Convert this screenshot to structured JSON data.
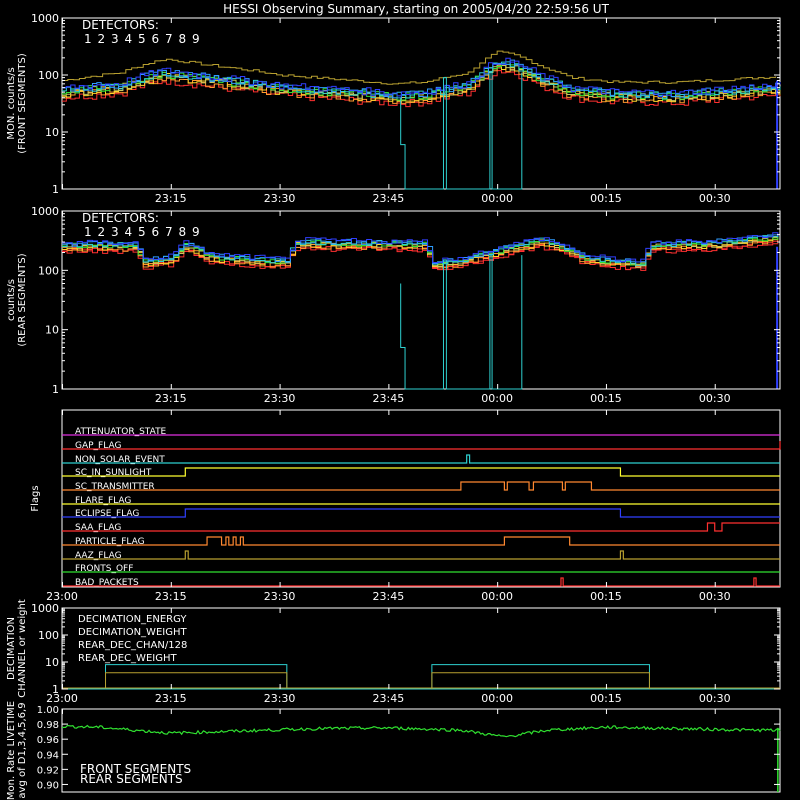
{
  "title": "HESSI Observing Summary, starting on 2005/04/20 22:59:56 UT",
  "detector_colors": [
    "#ff3030",
    "#ff3030",
    "#ff9a2e",
    "#ffd42a",
    "#c8c860",
    "#30e030",
    "#2ed0d0",
    "#2e9cff",
    "#3040ff"
  ],
  "colors": {
    "axis": "#ffffff",
    "yellow": "#ffff30",
    "brown": "#b8a030",
    "cyan": "#2ed0d0",
    "green": "#30e030",
    "red": "#ff3030",
    "orange": "#ff8830",
    "magenta": "#e030e0",
    "blue": "#3040ff"
  },
  "time_ticks": [
    "23:00",
    "23:15",
    "23:30",
    "23:45",
    "00:00",
    "00:15",
    "00:30"
  ],
  "chart_data": [
    {
      "type": "line",
      "title": "",
      "legend_title": "DETECTORS:",
      "legend": [
        "1",
        "2",
        "3",
        "4",
        "5",
        "6",
        "7",
        "8",
        "9"
      ],
      "ylabel": "MON. counts/s",
      "ylabel2": "(FRONT SEGMENTS)",
      "yscale": "log",
      "ylim": [
        1,
        1000
      ],
      "ytick_labels": [
        "1",
        "10",
        "100",
        "1000"
      ],
      "xtick_labels": [
        "23:15",
        "23:30",
        "23:45",
        "00:00",
        "00:15",
        "00:30"
      ],
      "series_shape": {
        "t_min": [
          0,
          8,
          14,
          20,
          30,
          40,
          46,
          50,
          56,
          58,
          60,
          62,
          66,
          70,
          76,
          80,
          85,
          93,
          99
        ],
        "front_mid": [
          50,
          60,
          100,
          80,
          55,
          45,
          40,
          42,
          60,
          100,
          150,
          140,
          80,
          50,
          42,
          42,
          40,
          50,
          55
        ],
        "front_top": [
          80,
          110,
          190,
          150,
          100,
          80,
          70,
          75,
          110,
          180,
          250,
          230,
          140,
          90,
          75,
          75,
          75,
          85,
          95
        ]
      }
    },
    {
      "type": "line",
      "legend_title": "DETECTORS:",
      "legend": [
        "1",
        "2",
        "3",
        "4",
        "5",
        "6",
        "7",
        "8",
        "9"
      ],
      "ylabel": "counts/s",
      "ylabel2": "(REAR SEGMENTS)",
      "yscale": "log",
      "ylim": [
        1,
        1000
      ],
      "ytick_labels": [
        "1",
        "10",
        "100",
        "1000"
      ],
      "xtick_labels": [
        "23:15",
        "23:30",
        "23:45",
        "00:00",
        "00:15",
        "00:30"
      ],
      "series_shape": {
        "t_min": [
          0,
          10,
          11,
          15,
          17,
          20,
          31,
          32,
          38,
          50,
          51,
          55,
          60,
          66,
          72,
          80,
          81,
          90,
          99
        ],
        "rear_mid": [
          250,
          250,
          130,
          150,
          260,
          160,
          130,
          280,
          270,
          260,
          120,
          140,
          200,
          300,
          150,
          120,
          250,
          270,
          350
        ]
      }
    },
    {
      "type": "table",
      "ylabel": "Flags",
      "xtick_labels": [
        "23:00",
        "23:15",
        "23:30",
        "23:45",
        "00:00",
        "00:15",
        "00:30"
      ],
      "flags": [
        {
          "name": "ATTENUATOR_STATE",
          "color": "#e030e0"
        },
        {
          "name": "GAP_FLAG",
          "color": "#ff3030"
        },
        {
          "name": "NON_SOLAR_EVENT",
          "color": "#2ed0d0"
        },
        {
          "name": "SC_IN_SUNLIGHT",
          "color": "#ffff30"
        },
        {
          "name": "SC_TRANSMITTER",
          "color": "#ff8830"
        },
        {
          "name": "FLARE_FLAG",
          "color": "#ffff30"
        },
        {
          "name": "ECLIPSE_FLAG",
          "color": "#3040ff"
        },
        {
          "name": "SAA_FLAG",
          "color": "#ff3030"
        },
        {
          "name": "PARTICLE_FLAG",
          "color": "#ff8830"
        },
        {
          "name": "AAZ_FLAG",
          "color": "#b8a030"
        },
        {
          "name": "FRONTS_OFF",
          "color": "#30e030"
        },
        {
          "name": "BAD_PACKETS",
          "color": "#ff3030"
        }
      ]
    },
    {
      "type": "line",
      "ylabel": "DECIMATION",
      "ylabel2": "CHANNEL or weight",
      "yscale": "log",
      "ylim": [
        1,
        1000
      ],
      "ytick_labels": [
        "1",
        "10",
        "100",
        "1000"
      ],
      "xtick_labels": [
        "23:00",
        "23:15",
        "23:30",
        "23:45",
        "00:00",
        "00:15",
        "00:30"
      ],
      "series": [
        {
          "name": "DECIMATION_ENERGY",
          "color": "#30e030"
        },
        {
          "name": "DECIMATION_WEIGHT",
          "color": "#ff8830"
        },
        {
          "name": "REAR_DEC_CHAN/128",
          "color": "#2ed0d0"
        },
        {
          "name": "REAR_DEC_WEIGHT",
          "color": "#b8a030"
        }
      ],
      "steps": [
        {
          "start_min": 6,
          "end_min": 31,
          "chan": 8,
          "weight": 4
        },
        {
          "start_min": 51,
          "end_min": 81,
          "chan": 8,
          "weight": 4
        }
      ]
    },
    {
      "type": "line",
      "ylabel": "Mon. Rate LIVETIME",
      "ylabel2": "avg of D1,3,4,5,6,9",
      "ylim": [
        0.89,
        1.0
      ],
      "ytick_labels": [
        "0.90",
        "0.92",
        "0.94",
        "0.96",
        "0.98",
        "1.00"
      ],
      "series": [
        {
          "name": "FRONT SEGMENTS",
          "color": "#30e030"
        },
        {
          "name": "REAR SEGMENTS",
          "color": "#1a9a1a"
        }
      ],
      "livetime_shape": {
        "t_min": [
          0,
          5,
          15,
          25,
          35,
          45,
          55,
          61,
          67,
          75,
          85,
          95,
          99
        ],
        "value": [
          0.977,
          0.976,
          0.968,
          0.971,
          0.974,
          0.975,
          0.972,
          0.963,
          0.972,
          0.976,
          0.974,
          0.972,
          0.972
        ]
      }
    }
  ]
}
